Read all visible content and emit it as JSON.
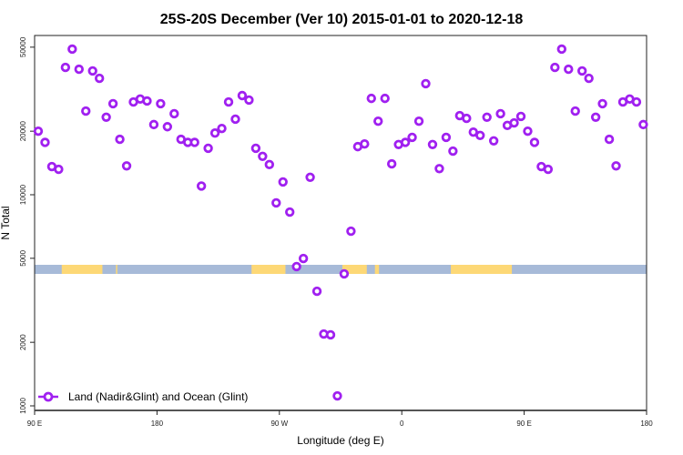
{
  "chart_data": {
    "type": "scatter",
    "title": "25S-20S December (Ver 10)   2015-01-01 to 2020-12-18",
    "xlabel": "Longitude (deg E)",
    "ylabel": "N Total",
    "y_scale": "log",
    "xlim": [
      90,
      450
    ],
    "ylim": [
      950,
      62000
    ],
    "x_ticks": [
      {
        "value": 90,
        "label": "90 E"
      },
      {
        "value": 180,
        "label": "180"
      },
      {
        "value": 270,
        "label": "90 W"
      },
      {
        "value": 360,
        "label": "0"
      },
      {
        "value": 450,
        "label": "90 E"
      },
      {
        "value": 540,
        "label": "180"
      }
    ],
    "y_ticks": [
      {
        "value": 1000,
        "label": "1000"
      },
      {
        "value": 2000,
        "label": "2000"
      },
      {
        "value": 5000,
        "label": "5000"
      },
      {
        "value": 10000,
        "label": "10000"
      },
      {
        "value": 20000,
        "label": "20000"
      },
      {
        "value": 50000,
        "label": "50000"
      }
    ],
    "legend": {
      "position": "bottom-left",
      "label": "Land (Nadir&Glint) and Ocean (Glint)"
    },
    "series": [
      {
        "name": "Land (Nadir&Glint) and Ocean (Glint)",
        "color": "#a020f0",
        "x_start": 92,
        "x_step": 4,
        "values": [
          20000,
          17700,
          13600,
          13200,
          40100,
          48950,
          39300,
          24900,
          38600,
          35600,
          23300,
          27000,
          18300,
          13700,
          27500,
          28400,
          27800,
          21500,
          27000,
          21000,
          24200,
          18300,
          17700,
          17700,
          11000,
          16600,
          19600,
          20600,
          27500,
          22800,
          29500,
          28100,
          16600,
          15200,
          13900,
          9150,
          11500,
          8280,
          4570,
          4990,
          12100,
          3490,
          2190,
          2170,
          1115,
          4220,
          6720,
          16900,
          17400,
          28600,
          22300,
          28600,
          14000,
          17300,
          17700,
          18700,
          22300,
          33600,
          17300,
          13300,
          18700,
          16100,
          23700,
          23000,
          19800,
          19100,
          23300,
          18000,
          24200,
          21300,
          21900,
          23500,
          20000,
          17700,
          13600,
          13200,
          40100,
          48950,
          39300,
          24900,
          38600,
          35600,
          23300,
          27000,
          18300,
          13700,
          27500,
          28400,
          27500,
          21500
        ]
      }
    ],
    "land_strip": {
      "ocean_color": "#a7bad8",
      "land_color": "#fdd876",
      "land_segments": [
        [
          110,
          140
        ],
        [
          150,
          151
        ],
        [
          250,
          275
        ],
        [
          317,
          335
        ],
        [
          341,
          344
        ],
        [
          397,
          442
        ]
      ]
    }
  }
}
